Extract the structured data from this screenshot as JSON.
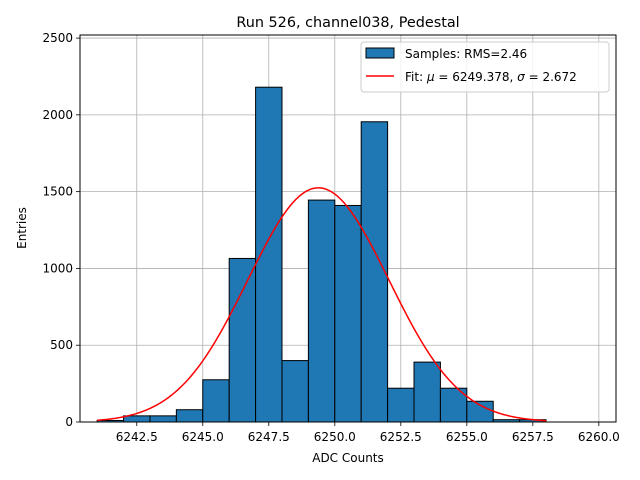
{
  "chart_data": {
    "type": "bar",
    "title": "Run 526, channel038, Pedestal",
    "xlabel": "ADC Counts",
    "ylabel": "Entries",
    "xlim": [
      6240.35,
      6260.65
    ],
    "ylim": [
      0,
      2520
    ],
    "x_ticks": [
      6242.5,
      6245.0,
      6247.5,
      6250.0,
      6252.5,
      6255.0,
      6257.5,
      6260.0
    ],
    "x_tick_labels": [
      "6242.5",
      "6245.0",
      "6247.5",
      "6250.0",
      "6252.5",
      "6255.0",
      "6257.5",
      "6260.0"
    ],
    "y_ticks": [
      0,
      500,
      1000,
      1500,
      2000,
      2500
    ],
    "y_tick_labels": [
      "0",
      "500",
      "1000",
      "1500",
      "2000",
      "2500"
    ],
    "grid": true,
    "legend_position": "top-right",
    "histogram": {
      "name": "Samples: RMS=2.46",
      "color": "#1f77b4",
      "edge_color": "#000000",
      "bins": [
        {
          "start": 6241.0,
          "end": 6242.0,
          "value": 10
        },
        {
          "start": 6242.0,
          "end": 6243.0,
          "value": 40
        },
        {
          "start": 6243.0,
          "end": 6244.0,
          "value": 40
        },
        {
          "start": 6244.0,
          "end": 6245.0,
          "value": 80
        },
        {
          "start": 6245.0,
          "end": 6246.0,
          "value": 275
        },
        {
          "start": 6246.0,
          "end": 6247.0,
          "value": 1065
        },
        {
          "start": 6247.0,
          "end": 6248.0,
          "value": 2180
        },
        {
          "start": 6248.0,
          "end": 6249.0,
          "value": 400
        },
        {
          "start": 6249.0,
          "end": 6250.0,
          "value": 1445
        },
        {
          "start": 6250.0,
          "end": 6251.0,
          "value": 1410
        },
        {
          "start": 6251.0,
          "end": 6252.0,
          "value": 1955
        },
        {
          "start": 6252.0,
          "end": 6253.0,
          "value": 220
        },
        {
          "start": 6253.0,
          "end": 6254.0,
          "value": 390
        },
        {
          "start": 6254.0,
          "end": 6255.0,
          "value": 220
        },
        {
          "start": 6255.0,
          "end": 6256.0,
          "value": 135
        },
        {
          "start": 6256.0,
          "end": 6257.0,
          "value": 15
        },
        {
          "start": 6257.0,
          "end": 6258.0,
          "value": 15
        }
      ]
    },
    "fit": {
      "name": "Fit: μ = 6249.378, σ = 2.672",
      "legend_parts": [
        "Fit: ",
        "μ",
        " = 6249.378, ",
        "σ",
        " = 2.672"
      ],
      "color": "#ff0000",
      "mu": 6249.378,
      "sigma": 2.672,
      "amplitude": 1525,
      "x_range": [
        6241.0,
        6258.0
      ]
    }
  }
}
